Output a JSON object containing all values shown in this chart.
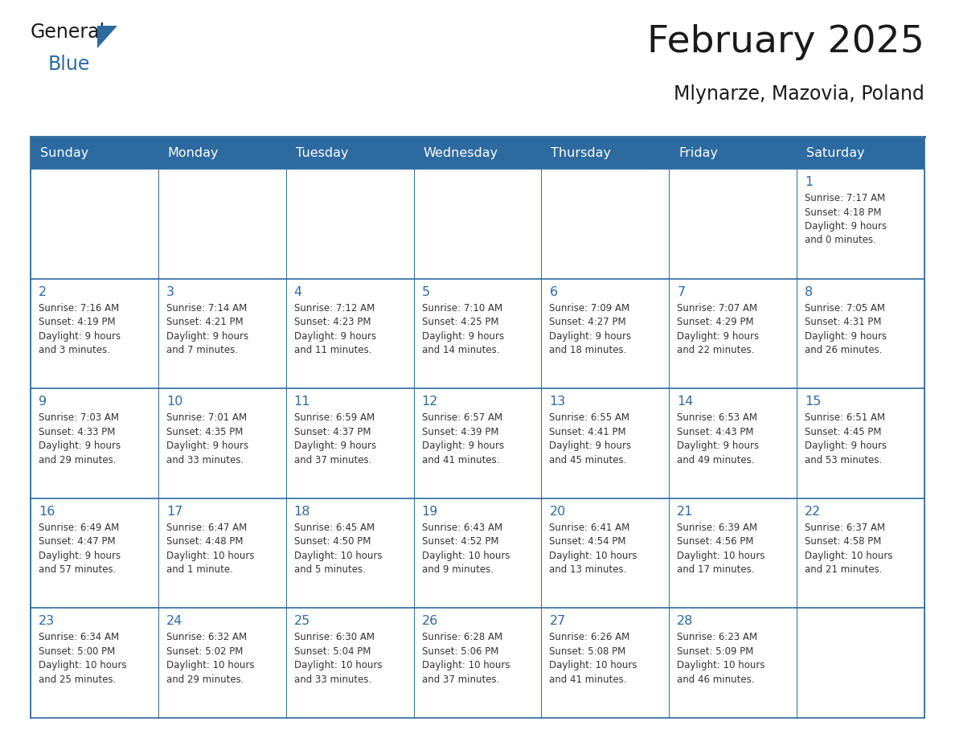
{
  "title": "February 2025",
  "subtitle": "Mlynarze, Mazovia, Poland",
  "header_bg": "#2D6AA0",
  "header_text": "#FFFFFF",
  "cell_bg": "#FFFFFF",
  "day_number_color": "#2D6AA0",
  "info_text_color": "#333333",
  "grid_line_color": "#2D6AA0",
  "days_of_week": [
    "Sunday",
    "Monday",
    "Tuesday",
    "Wednesday",
    "Thursday",
    "Friday",
    "Saturday"
  ],
  "weeks": [
    [
      {
        "day": null,
        "info": null
      },
      {
        "day": null,
        "info": null
      },
      {
        "day": null,
        "info": null
      },
      {
        "day": null,
        "info": null
      },
      {
        "day": null,
        "info": null
      },
      {
        "day": null,
        "info": null
      },
      {
        "day": 1,
        "info": "Sunrise: 7:17 AM\nSunset: 4:18 PM\nDaylight: 9 hours\nand 0 minutes."
      }
    ],
    [
      {
        "day": 2,
        "info": "Sunrise: 7:16 AM\nSunset: 4:19 PM\nDaylight: 9 hours\nand 3 minutes."
      },
      {
        "day": 3,
        "info": "Sunrise: 7:14 AM\nSunset: 4:21 PM\nDaylight: 9 hours\nand 7 minutes."
      },
      {
        "day": 4,
        "info": "Sunrise: 7:12 AM\nSunset: 4:23 PM\nDaylight: 9 hours\nand 11 minutes."
      },
      {
        "day": 5,
        "info": "Sunrise: 7:10 AM\nSunset: 4:25 PM\nDaylight: 9 hours\nand 14 minutes."
      },
      {
        "day": 6,
        "info": "Sunrise: 7:09 AM\nSunset: 4:27 PM\nDaylight: 9 hours\nand 18 minutes."
      },
      {
        "day": 7,
        "info": "Sunrise: 7:07 AM\nSunset: 4:29 PM\nDaylight: 9 hours\nand 22 minutes."
      },
      {
        "day": 8,
        "info": "Sunrise: 7:05 AM\nSunset: 4:31 PM\nDaylight: 9 hours\nand 26 minutes."
      }
    ],
    [
      {
        "day": 9,
        "info": "Sunrise: 7:03 AM\nSunset: 4:33 PM\nDaylight: 9 hours\nand 29 minutes."
      },
      {
        "day": 10,
        "info": "Sunrise: 7:01 AM\nSunset: 4:35 PM\nDaylight: 9 hours\nand 33 minutes."
      },
      {
        "day": 11,
        "info": "Sunrise: 6:59 AM\nSunset: 4:37 PM\nDaylight: 9 hours\nand 37 minutes."
      },
      {
        "day": 12,
        "info": "Sunrise: 6:57 AM\nSunset: 4:39 PM\nDaylight: 9 hours\nand 41 minutes."
      },
      {
        "day": 13,
        "info": "Sunrise: 6:55 AM\nSunset: 4:41 PM\nDaylight: 9 hours\nand 45 minutes."
      },
      {
        "day": 14,
        "info": "Sunrise: 6:53 AM\nSunset: 4:43 PM\nDaylight: 9 hours\nand 49 minutes."
      },
      {
        "day": 15,
        "info": "Sunrise: 6:51 AM\nSunset: 4:45 PM\nDaylight: 9 hours\nand 53 minutes."
      }
    ],
    [
      {
        "day": 16,
        "info": "Sunrise: 6:49 AM\nSunset: 4:47 PM\nDaylight: 9 hours\nand 57 minutes."
      },
      {
        "day": 17,
        "info": "Sunrise: 6:47 AM\nSunset: 4:48 PM\nDaylight: 10 hours\nand 1 minute."
      },
      {
        "day": 18,
        "info": "Sunrise: 6:45 AM\nSunset: 4:50 PM\nDaylight: 10 hours\nand 5 minutes."
      },
      {
        "day": 19,
        "info": "Sunrise: 6:43 AM\nSunset: 4:52 PM\nDaylight: 10 hours\nand 9 minutes."
      },
      {
        "day": 20,
        "info": "Sunrise: 6:41 AM\nSunset: 4:54 PM\nDaylight: 10 hours\nand 13 minutes."
      },
      {
        "day": 21,
        "info": "Sunrise: 6:39 AM\nSunset: 4:56 PM\nDaylight: 10 hours\nand 17 minutes."
      },
      {
        "day": 22,
        "info": "Sunrise: 6:37 AM\nSunset: 4:58 PM\nDaylight: 10 hours\nand 21 minutes."
      }
    ],
    [
      {
        "day": 23,
        "info": "Sunrise: 6:34 AM\nSunset: 5:00 PM\nDaylight: 10 hours\nand 25 minutes."
      },
      {
        "day": 24,
        "info": "Sunrise: 6:32 AM\nSunset: 5:02 PM\nDaylight: 10 hours\nand 29 minutes."
      },
      {
        "day": 25,
        "info": "Sunrise: 6:30 AM\nSunset: 5:04 PM\nDaylight: 10 hours\nand 33 minutes."
      },
      {
        "day": 26,
        "info": "Sunrise: 6:28 AM\nSunset: 5:06 PM\nDaylight: 10 hours\nand 37 minutes."
      },
      {
        "day": 27,
        "info": "Sunrise: 6:26 AM\nSunset: 5:08 PM\nDaylight: 10 hours\nand 41 minutes."
      },
      {
        "day": 28,
        "info": "Sunrise: 6:23 AM\nSunset: 5:09 PM\nDaylight: 10 hours\nand 46 minutes."
      },
      {
        "day": null,
        "info": null
      }
    ]
  ],
  "logo_general_color": "#1a1a1a",
  "logo_blue_color": "#2D6AA0",
  "logo_triangle_color": "#2D6AA0",
  "fig_width": 11.88,
  "fig_height": 9.18,
  "dpi": 100
}
